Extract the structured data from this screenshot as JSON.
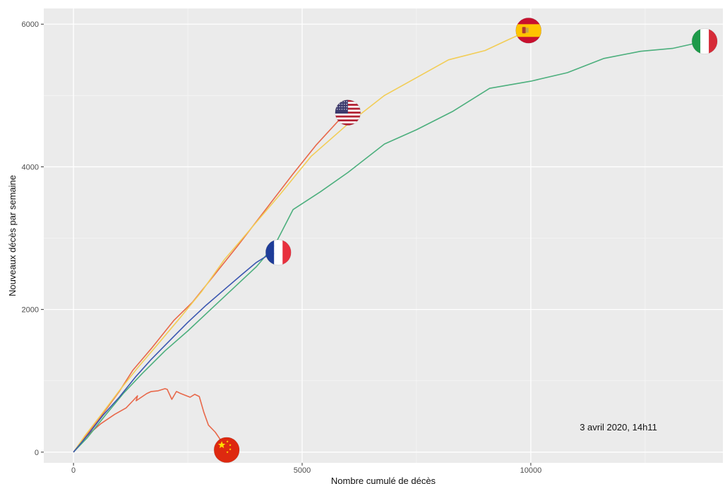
{
  "chart_data": {
    "type": "line",
    "title": "",
    "xlabel": "Nombre cumulé de décès",
    "ylabel": "Nouveaux décès par semaine",
    "xlim": [
      -650,
      14200
    ],
    "ylim": [
      -150,
      6220
    ],
    "x_ticks": [
      0,
      5000,
      10000
    ],
    "x_tick_labels": [
      "0",
      "5000",
      "10000"
    ],
    "y_ticks": [
      0,
      2000,
      4000,
      6000
    ],
    "y_tick_labels": [
      "0",
      "2000",
      "4000",
      "6000"
    ],
    "grid": true,
    "legend": "none",
    "annotation": "3 avril 2020, 14h11",
    "series": [
      {
        "color": "#e8684a",
        "flag_icon": "china-flag-icon",
        "x": [
          0,
          200,
          350,
          600,
          900,
          1150,
          1300,
          1400,
          1370,
          1600,
          1700,
          1850,
          2000,
          2050,
          2150,
          2250,
          2350,
          2550,
          2650,
          2750,
          2850,
          2950,
          3100,
          3250,
          3350
        ],
        "y": [
          0,
          170,
          260,
          400,
          530,
          620,
          720,
          790,
          720,
          820,
          850,
          860,
          890,
          880,
          740,
          850,
          820,
          770,
          810,
          780,
          560,
          380,
          280,
          140,
          30
        ]
      },
      {
        "color": "#e8684a",
        "flag_icon": "usa-flag-icon",
        "x": [
          0,
          300,
          600,
          1000,
          1300,
          1700,
          2200,
          2600,
          3100,
          3600,
          4200,
          4800,
          5300,
          5800,
          6000
        ],
        "y": [
          0,
          250,
          500,
          850,
          1150,
          1450,
          1850,
          2100,
          2500,
          2900,
          3400,
          3900,
          4300,
          4650,
          4760
        ]
      },
      {
        "color": "#f2cd56",
        "flag_icon": "spain-flag-icon",
        "x": [
          0,
          250,
          600,
          1000,
          1400,
          1800,
          2300,
          2800,
          3300,
          3900,
          4500,
          5200,
          6000,
          6800,
          7500,
          8200,
          9000,
          9500,
          9950
        ],
        "y": [
          0,
          230,
          520,
          860,
          1180,
          1480,
          1860,
          2250,
          2700,
          3150,
          3600,
          4150,
          4600,
          5000,
          5250,
          5500,
          5630,
          5780,
          5910
        ]
      },
      {
        "color": "#4caf7d",
        "flag_icon": "italy-flag-icon",
        "x": [
          0,
          300,
          700,
          1100,
          1500,
          2000,
          2500,
          3000,
          3500,
          4000,
          4400,
          4800,
          5400,
          6000,
          6800,
          7500,
          8300,
          9100,
          10000,
          10800,
          11600,
          12400,
          13100,
          13800
        ],
        "y": [
          0,
          200,
          520,
          830,
          1100,
          1420,
          1700,
          2000,
          2300,
          2600,
          2900,
          3400,
          3650,
          3920,
          4320,
          4520,
          4780,
          5100,
          5200,
          5320,
          5520,
          5620,
          5660,
          5760
        ]
      },
      {
        "color": "#3a56b0",
        "flag_icon": "france-flag-icon",
        "x": [
          0,
          300,
          650,
          1000,
          1350,
          1700,
          2100,
          2500,
          2900,
          3300,
          3700,
          4000,
          4250,
          4480
        ],
        "y": [
          0,
          230,
          520,
          770,
          1050,
          1300,
          1560,
          1820,
          2060,
          2280,
          2500,
          2660,
          2760,
          2800
        ]
      }
    ]
  }
}
